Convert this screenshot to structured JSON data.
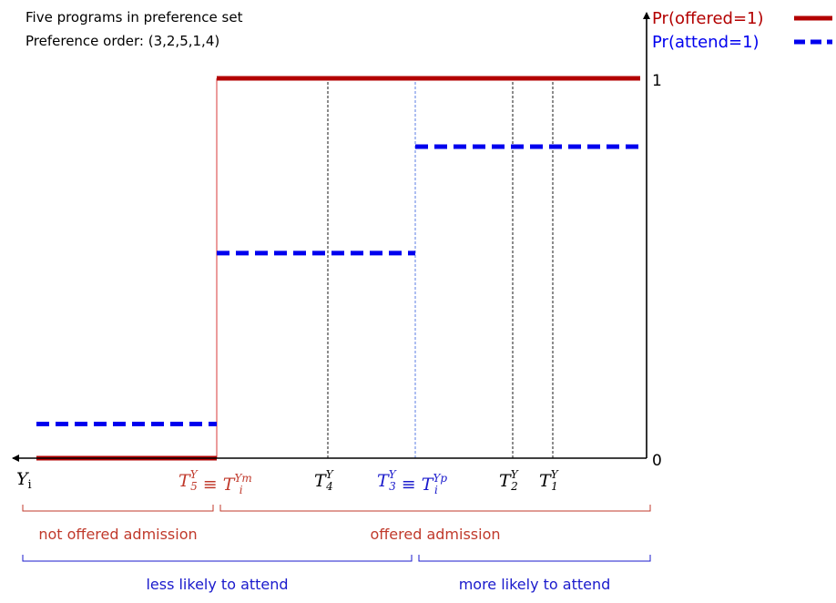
{
  "chart_data": {
    "type": "line",
    "title": "Five programs in preference set",
    "subtitle": "Preference order: (3,2,5,1,4)",
    "x_axis_label": "Y",
    "x_axis_label_sub": "i",
    "y_ticks": [
      {
        "value": 0,
        "label": "0"
      },
      {
        "value": 1,
        "label": "1"
      }
    ],
    "thresholds": [
      {
        "id": "t5",
        "base": "T",
        "sub": "5",
        "sup": "Y",
        "equiv": true,
        "rhs_base": "T",
        "rhs_sub": "i",
        "rhs_sup": "Ym",
        "color": "#c0392b",
        "line_color": "#e05a5a"
      },
      {
        "id": "t4",
        "base": "T",
        "sub": "4",
        "sup": "Y",
        "equiv": false,
        "color": "#000000",
        "line_color": "#000000"
      },
      {
        "id": "t3",
        "base": "T",
        "sub": "3",
        "sup": "Y",
        "equiv": true,
        "rhs_base": "T",
        "rhs_sub": "i",
        "rhs_sup": "Yp",
        "color": "#1a1acc",
        "line_color": "#4a6fe0"
      },
      {
        "id": "t2",
        "base": "T",
        "sub": "2",
        "sup": "Y",
        "equiv": false,
        "color": "#000000",
        "line_color": "#000000"
      },
      {
        "id": "t1",
        "base": "T",
        "sub": "1",
        "sup": "Y",
        "equiv": false,
        "color": "#000000",
        "line_color": "#000000"
      }
    ],
    "series": [
      {
        "name": "Pr(offered=1)",
        "color": "#b30000",
        "style": "solid",
        "segments": [
          {
            "from": "left",
            "to": "t5",
            "y": 0.0
          },
          {
            "from": "t5",
            "to": "right",
            "y": 1.0
          }
        ]
      },
      {
        "name": "Pr(attend=1)",
        "color": "#0000ee",
        "style": "dashed",
        "segments": [
          {
            "from": "left",
            "to": "t5",
            "y": 0.09
          },
          {
            "from": "t5",
            "to": "t3",
            "y": 0.54
          },
          {
            "from": "t3",
            "to": "right",
            "y": 0.82
          }
        ]
      }
    ],
    "brackets": [
      {
        "label": "not offered admission",
        "from": "left",
        "to": "t5",
        "color": "#c0392b",
        "row": 1
      },
      {
        "label": "offered admission",
        "from": "t5",
        "to": "right",
        "color": "#c0392b",
        "row": 1
      },
      {
        "label": "less likely to attend",
        "from": "left",
        "to": "t3",
        "color": "#1a1acc",
        "row": 2
      },
      {
        "label": "more likely to attend",
        "from": "t3",
        "to": "right",
        "color": "#1a1acc",
        "row": 2
      }
    ],
    "legend_position": "top-right"
  }
}
